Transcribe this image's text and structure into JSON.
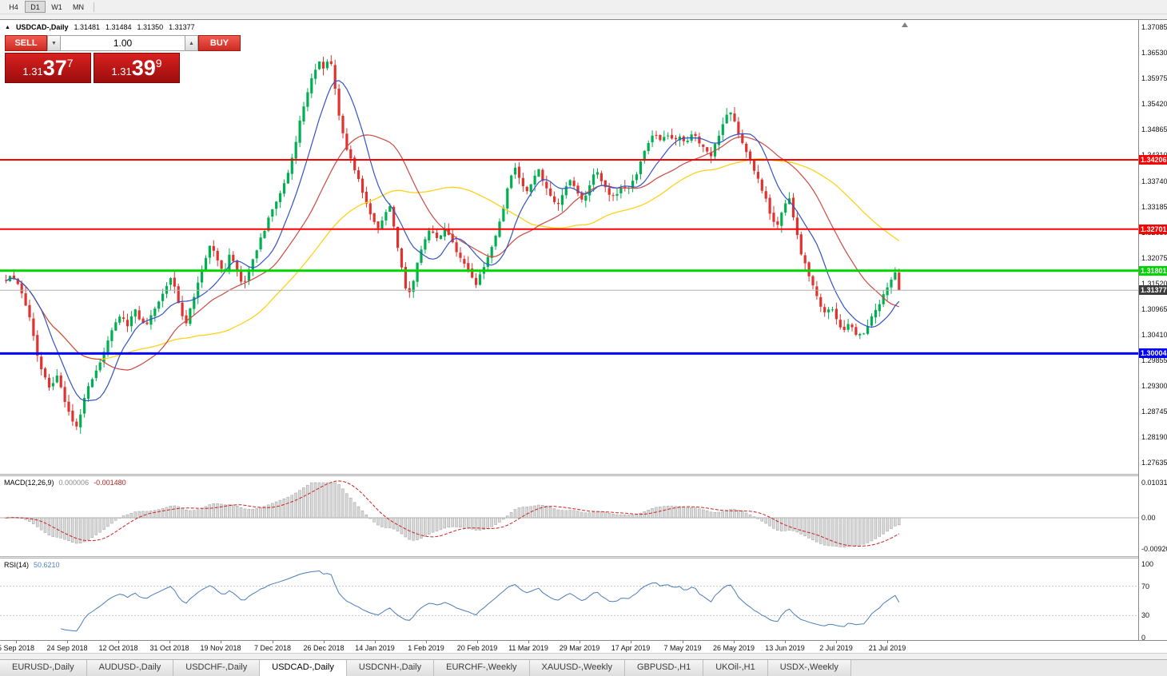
{
  "toolbar": {
    "timeframes": [
      {
        "label": "H4",
        "active": false
      },
      {
        "label": "D1",
        "active": true
      },
      {
        "label": "W1",
        "active": false
      },
      {
        "label": "MN",
        "active": false
      }
    ]
  },
  "icons": {
    "collapse_icon": "▲",
    "volume_down_icon": "▼",
    "volume_up_icon": "▲"
  },
  "chart": {
    "symbol_header": {
      "title": "USDCAD-,Daily",
      "open": "1.31481",
      "high": "1.31484",
      "low": "1.31350",
      "close": "1.31377"
    },
    "trade_panel": {
      "sell_label": "SELL",
      "buy_label": "BUY",
      "volume": "1.00",
      "sell_price": {
        "prefix": "1.31",
        "big": "37",
        "sup": "7"
      },
      "buy_price": {
        "prefix": "1.31",
        "big": "39",
        "sup": "9"
      }
    },
    "price_axis": {
      "labels": [
        "1.37085",
        "1.36530",
        "1.35975",
        "1.35420",
        "1.34865",
        "1.34310",
        "1.33740",
        "1.33185",
        "1.32630",
        "1.32075",
        "1.31520",
        "1.30965",
        "1.30410",
        "1.29855",
        "1.29300",
        "1.28745",
        "1.28190",
        "1.27635"
      ]
    },
    "levels": [
      {
        "label": "1.34206",
        "value": 1.34206,
        "color": "#ff0000",
        "width": 2
      },
      {
        "label": "1.32701",
        "value": 1.32701,
        "color": "#ff0000",
        "width": 2
      },
      {
        "label": "1.31801",
        "value": 1.31801,
        "color": "#00d500",
        "width": 3
      },
      {
        "label": "1.30004",
        "value": 1.30004,
        "color": "#0000ff",
        "width": 3
      }
    ],
    "current_price": {
      "label": "1.31377",
      "value": 1.31377
    }
  },
  "macd": {
    "title": "MACD(12,26,9)",
    "value_main": "0.000006",
    "value_signal": "-0.001480",
    "axis_labels": [
      {
        "label": "0.010311",
        "value": 0.010311
      },
      {
        "label": "0.00",
        "value": 0
      },
      {
        "label": "-0.009204",
        "value": -0.009204
      }
    ]
  },
  "rsi": {
    "title": "RSI(14)",
    "value": "50.6210",
    "axis_labels": [
      {
        "label": "100",
        "value": 100
      },
      {
        "label": "70",
        "value": 70
      },
      {
        "label": "30",
        "value": 30
      },
      {
        "label": "0",
        "value": 0
      }
    ],
    "dashed_levels": [
      70,
      30
    ]
  },
  "chart_data": {
    "type": "candlestick",
    "symbol": "USDCAD",
    "timeframe": "Daily",
    "x_labels": [
      "5 Sep 2018",
      "24 Sep 2018",
      "12 Oct 2018",
      "31 Oct 2018",
      "19 Nov 2018",
      "7 Dec 2018",
      "26 Dec 2018",
      "14 Jan 2019",
      "1 Feb 2019",
      "20 Feb 2019",
      "11 Mar 2019",
      "29 Mar 2019",
      "17 Apr 2019",
      "7 May 2019",
      "26 May 2019",
      "13 Jun 2019",
      "2 Jul 2019",
      "21 Jul 2019"
    ],
    "price_path": [
      [
        6,
        1.316
      ],
      [
        14,
        1.3172
      ],
      [
        22,
        1.315
      ],
      [
        30,
        1.3105
      ],
      [
        38,
        1.306
      ],
      [
        46,
        1.299
      ],
      [
        54,
        1.295
      ],
      [
        62,
        1.292
      ],
      [
        70,
        1.2958
      ],
      [
        78,
        1.2905
      ],
      [
        86,
        1.2862
      ],
      [
        95,
        1.284
      ],
      [
        102,
        1.289
      ],
      [
        110,
        1.2932
      ],
      [
        118,
        1.2962
      ],
      [
        126,
        1.2992
      ],
      [
        134,
        1.3035
      ],
      [
        142,
        1.306
      ],
      [
        150,
        1.309
      ],
      [
        158,
        1.306
      ],
      [
        166,
        1.31
      ],
      [
        174,
        1.307
      ],
      [
        182,
        1.306
      ],
      [
        190,
        1.3092
      ],
      [
        198,
        1.312
      ],
      [
        206,
        1.3145
      ],
      [
        214,
        1.3165
      ],
      [
        222,
        1.311
      ],
      [
        230,
        1.3062
      ],
      [
        238,
        1.3105
      ],
      [
        246,
        1.315
      ],
      [
        254,
        1.3195
      ],
      [
        262,
        1.324
      ],
      [
        270,
        1.3205
      ],
      [
        278,
        1.3175
      ],
      [
        286,
        1.3215
      ],
      [
        294,
        1.3185
      ],
      [
        302,
        1.3148
      ],
      [
        310,
        1.318
      ],
      [
        318,
        1.322
      ],
      [
        326,
        1.3255
      ],
      [
        334,
        1.329
      ],
      [
        342,
        1.332
      ],
      [
        350,
        1.3352
      ],
      [
        358,
        1.339
      ],
      [
        366,
        1.344
      ],
      [
        374,
        1.351
      ],
      [
        382,
        1.356
      ],
      [
        390,
        1.3605
      ],
      [
        397,
        1.3638
      ],
      [
        404,
        1.362
      ],
      [
        411,
        1.365
      ],
      [
        418,
        1.3575
      ],
      [
        425,
        1.349
      ],
      [
        432,
        1.3445
      ],
      [
        440,
        1.3408
      ],
      [
        448,
        1.3372
      ],
      [
        456,
        1.333
      ],
      [
        464,
        1.329
      ],
      [
        471,
        1.3268
      ],
      [
        478,
        1.3295
      ],
      [
        486,
        1.332
      ],
      [
        493,
        1.3262
      ],
      [
        500,
        1.319
      ],
      [
        508,
        1.3125
      ],
      [
        515,
        1.3158
      ],
      [
        522,
        1.3205
      ],
      [
        530,
        1.3252
      ],
      [
        538,
        1.3272
      ],
      [
        546,
        1.325
      ],
      [
        554,
        1.3268
      ],
      [
        562,
        1.3248
      ],
      [
        570,
        1.3222
      ],
      [
        578,
        1.32
      ],
      [
        586,
        1.3175
      ],
      [
        594,
        1.3152
      ],
      [
        602,
        1.3185
      ],
      [
        610,
        1.3215
      ],
      [
        618,
        1.3255
      ],
      [
        626,
        1.3305
      ],
      [
        634,
        1.336
      ],
      [
        641,
        1.341
      ],
      [
        648,
        1.338
      ],
      [
        656,
        1.3352
      ],
      [
        664,
        1.3375
      ],
      [
        672,
        1.3398
      ],
      [
        680,
        1.3368
      ],
      [
        688,
        1.334
      ],
      [
        696,
        1.3322
      ],
      [
        704,
        1.3355
      ],
      [
        712,
        1.3378
      ],
      [
        720,
        1.3352
      ],
      [
        728,
        1.333
      ],
      [
        736,
        1.3368
      ],
      [
        744,
        1.3398
      ],
      [
        752,
        1.3372
      ],
      [
        760,
        1.3348
      ],
      [
        768,
        1.334
      ],
      [
        776,
        1.3365
      ],
      [
        784,
        1.3352
      ],
      [
        792,
        1.3378
      ],
      [
        800,
        1.342
      ],
      [
        808,
        1.3455
      ],
      [
        816,
        1.3482
      ],
      [
        824,
        1.3465
      ],
      [
        832,
        1.348
      ],
      [
        840,
        1.3462
      ],
      [
        848,
        1.3476
      ],
      [
        856,
        1.346
      ],
      [
        864,
        1.348
      ],
      [
        872,
        1.3462
      ],
      [
        880,
        1.3445
      ],
      [
        888,
        1.343
      ],
      [
        896,
        1.3468
      ],
      [
        904,
        1.3508
      ],
      [
        911,
        1.3535
      ],
      [
        918,
        1.3498
      ],
      [
        925,
        1.3468
      ],
      [
        932,
        1.344
      ],
      [
        940,
        1.3402
      ],
      [
        948,
        1.3372
      ],
      [
        956,
        1.334
      ],
      [
        963,
        1.3298
      ],
      [
        970,
        1.3272
      ],
      [
        978,
        1.3318
      ],
      [
        985,
        1.3342
      ],
      [
        992,
        1.3288
      ],
      [
        1000,
        1.3222
      ],
      [
        1008,
        1.318
      ],
      [
        1016,
        1.3148
      ],
      [
        1024,
        1.3108
      ],
      [
        1031,
        1.3082
      ],
      [
        1038,
        1.3102
      ],
      [
        1046,
        1.3072
      ],
      [
        1054,
        1.3048
      ],
      [
        1061,
        1.3066
      ],
      [
        1068,
        1.3044
      ],
      [
        1076,
        1.3038
      ],
      [
        1084,
        1.3062
      ],
      [
        1092,
        1.3088
      ],
      [
        1100,
        1.3115
      ],
      [
        1107,
        1.3142
      ],
      [
        1114,
        1.3165
      ],
      [
        1120,
        1.3178
      ],
      [
        1126,
        1.314
      ]
    ],
    "moving_averages": [
      {
        "name": "fast",
        "period": 10,
        "color": "#3353c4"
      },
      {
        "name": "medium",
        "period": 25,
        "color": "#cc4a42"
      },
      {
        "name": "slow",
        "period": 50,
        "color": "#ffd11a"
      }
    ]
  },
  "tabs": [
    {
      "label": "EURUSD-,Daily",
      "active": false
    },
    {
      "label": "AUDUSD-,Daily",
      "active": false
    },
    {
      "label": "USDCHF-,Daily",
      "active": false
    },
    {
      "label": "USDCAD-,Daily",
      "active": true
    },
    {
      "label": "USDCNH-,Daily",
      "active": false
    },
    {
      "label": "EURCHF-,Weekly",
      "active": false
    },
    {
      "label": "XAUUSD-,Weekly",
      "active": false
    },
    {
      "label": "GBPUSD-,H1",
      "active": false
    },
    {
      "label": "UKOil-,H1",
      "active": false
    },
    {
      "label": "USDX-,Weekly",
      "active": false
    }
  ],
  "colors": {
    "candle_up": "#00b050",
    "candle_down": "#e03330",
    "macd_histogram": "#d8d8d8",
    "macd_histogram_border": "#9e9e9e",
    "macd_signal": "#cc2222",
    "rsi_line": "#4a7dbb",
    "current_price_badge": "#3c3c3c",
    "current_price_line": "#b0b0b0"
  }
}
